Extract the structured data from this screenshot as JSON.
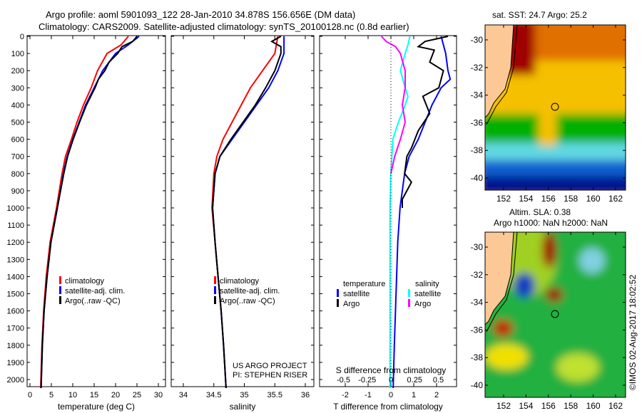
{
  "title": {
    "line1": "Argo profile: aoml 5901093_122 28-Jan-2010 34.878S 156.656E (DM data)",
    "line2": "Climatology: CARS2009. Satellite-adjusted climatology: synTS_20100128.nc (0.8d earlier)"
  },
  "colors": {
    "clim": "#ff0000",
    "sat": "#0000ff",
    "argo": "#000000",
    "s_sat": "#00ffff",
    "s_argo": "#ff00ff"
  },
  "chart_data": [
    {
      "type": "line",
      "name": "temperature",
      "xlabel": "temperature (deg C)",
      "xlim": [
        -0.5,
        31.5
      ],
      "ylim": [
        2050,
        0
      ],
      "xticks": [
        0,
        5,
        10,
        15,
        20,
        25,
        30
      ],
      "yticks": [
        0,
        100,
        200,
        300,
        400,
        500,
        600,
        700,
        800,
        900,
        1000,
        1100,
        1200,
        1300,
        1400,
        1500,
        1600,
        1700,
        1800,
        1900,
        2000
      ],
      "legend": [
        "climatology",
        "satellite-adj. clim.",
        "Argo(..raw -QC)"
      ],
      "series": [
        {
          "name": "climatology",
          "depth": [
            0,
            50,
            100,
            200,
            300,
            400,
            500,
            600,
            700,
            800,
            1000,
            1200,
            1400,
            1600,
            1800,
            2050
          ],
          "values": [
            23,
            21.3,
            18,
            15.8,
            14.3,
            12.5,
            11,
            9.7,
            8.3,
            7.5,
            6.2,
            4.7,
            3.8,
            3.2,
            2.8,
            2.5
          ]
        },
        {
          "name": "satellite-adj. clim.",
          "depth": [
            0,
            50,
            100,
            200,
            300,
            400,
            500,
            600,
            700,
            800,
            1000,
            1200,
            1400,
            1600,
            1800,
            2050
          ],
          "values": [
            25.5,
            23,
            20,
            17,
            15,
            13,
            11.5,
            10,
            8.7,
            7.8,
            6.4,
            4.9,
            4,
            3.3,
            2.9,
            2.6
          ]
        },
        {
          "name": "Argo",
          "depth": [
            0,
            30,
            60,
            100,
            150,
            200,
            250,
            300,
            400,
            500,
            600,
            700,
            800,
            1000,
            1200,
            1400,
            1600,
            1800,
            2050
          ],
          "values": [
            25,
            24,
            21.5,
            20.5,
            18.5,
            17.5,
            16,
            15.2,
            13.2,
            11.6,
            10.1,
            8.8,
            7.9,
            6.4,
            4.9,
            4,
            3.3,
            2.9,
            2.6
          ]
        }
      ]
    },
    {
      "type": "line",
      "name": "salinity",
      "xlabel": "salinity",
      "xlim": [
        33.8,
        36.1
      ],
      "ylim": [
        2050,
        0
      ],
      "xticks": [
        34,
        34.5,
        35,
        35.5,
        36
      ],
      "legend": [
        "climatology",
        "satellite-adj. clim.",
        "Argo(..raw -QC)"
      ],
      "annotation": [
        "US ARGO PROJECT",
        "PI: STEPHEN RISER"
      ],
      "series": [
        {
          "name": "climatology",
          "depth": [
            0,
            100,
            200,
            300,
            400,
            500,
            600,
            700,
            800,
            1000,
            1200,
            1400,
            1600,
            1800,
            2050
          ],
          "values": [
            35.55,
            35.5,
            35.3,
            35.1,
            34.95,
            34.8,
            34.65,
            34.55,
            34.5,
            34.47,
            34.52,
            34.57,
            34.62,
            34.66,
            34.7
          ]
        },
        {
          "name": "satellite-adj. clim.",
          "depth": [
            0,
            100,
            200,
            300,
            400,
            500,
            600,
            700,
            800,
            1000,
            1200,
            1400,
            1600,
            1800,
            2050
          ],
          "values": [
            35.65,
            35.65,
            35.55,
            35.4,
            35.2,
            35,
            34.8,
            34.6,
            34.52,
            34.48,
            34.52,
            34.57,
            34.62,
            34.66,
            34.7
          ]
        },
        {
          "name": "Argo",
          "depth": [
            0,
            30,
            60,
            100,
            200,
            300,
            400,
            500,
            600,
            700,
            800,
            1000,
            1200,
            1400,
            1600,
            1800,
            2050
          ],
          "values": [
            35.6,
            35.45,
            35.6,
            35.6,
            35.5,
            35.35,
            35.18,
            34.98,
            34.78,
            34.6,
            34.52,
            34.48,
            34.52,
            34.57,
            34.62,
            34.66,
            34.7
          ]
        }
      ]
    },
    {
      "type": "line",
      "name": "difference",
      "xlabel": "T difference from climatology",
      "x2label": "S difference from climatology",
      "xlim": [
        -2.9,
        3.1
      ],
      "ylim": [
        2050,
        0
      ],
      "xticks": [
        -2,
        -1,
        0,
        1,
        2
      ],
      "x2ticks": [
        -0.5,
        -0.25,
        0,
        0.25,
        0.5
      ],
      "legend": {
        "temperature": "temperature",
        "salinity": "salinity",
        "items": [
          "satellite",
          "Argo",
          "satellite",
          "Argo"
        ]
      },
      "series": [
        {
          "name": "T satellite",
          "axis": "T",
          "depth": [
            0,
            50,
            100,
            200,
            250,
            300,
            400,
            500,
            600,
            700,
            800,
            1000,
            1200,
            1400,
            1600,
            1800,
            2050
          ],
          "values": [
            2.2,
            2.3,
            2.4,
            2.5,
            2.6,
            2.2,
            1.8,
            1.5,
            1.2,
            0.8,
            0.6,
            0.4,
            0.3,
            0.25,
            0.2,
            0.15,
            0.1
          ]
        },
        {
          "name": "T Argo",
          "axis": "T",
          "depth": [
            0,
            30,
            60,
            80,
            150,
            200,
            300,
            350,
            450,
            550,
            650,
            700,
            800,
            850,
            950,
            1000
          ],
          "values": [
            2.5,
            1.5,
            1.2,
            1.9,
            1.7,
            2.3,
            2.1,
            1.4,
            1.7,
            1.2,
            0.9,
            0.7,
            0.6,
            0.9,
            0.5,
            0.5
          ]
        },
        {
          "name": "S satellite",
          "axis": "S",
          "depth": [
            0,
            50,
            100,
            200,
            300,
            350,
            400,
            500,
            600,
            800,
            1000,
            2050
          ],
          "values": [
            0.2,
            0.18,
            0.15,
            0.1,
            0.15,
            0.18,
            0.15,
            0.08,
            0.02,
            0,
            -0.01,
            -0.01
          ]
        },
        {
          "name": "S Argo",
          "axis": "S",
          "depth": [
            0,
            30,
            60,
            100,
            200,
            300,
            400,
            500,
            600,
            700,
            800
          ],
          "values": [
            -0.1,
            -0.05,
            0.05,
            0.1,
            0.15,
            0.15,
            0.12,
            0.15,
            0.1,
            0.04,
            0
          ]
        }
      ]
    }
  ],
  "map_sst": {
    "title": "sat. SST: 24.7 Argo: 25.2",
    "lon_ticks": [
      "152",
      "154",
      "156",
      "158",
      "160",
      "162"
    ],
    "lat_ticks": [
      "-30",
      "-32",
      "-34",
      "-36",
      "-38",
      "-40"
    ]
  },
  "map_sla": {
    "title1": "Altim. SLA: 0.38",
    "title2": "Argo h1000: NaN h2000: NaN",
    "lon_ticks": [
      "152",
      "154",
      "156",
      "158",
      "160",
      "162"
    ],
    "lat_ticks": [
      "-30",
      "-32",
      "-34",
      "-36",
      "-38",
      "-40"
    ]
  },
  "credit": "©IMOS 02-Aug-2017 18:02:52"
}
